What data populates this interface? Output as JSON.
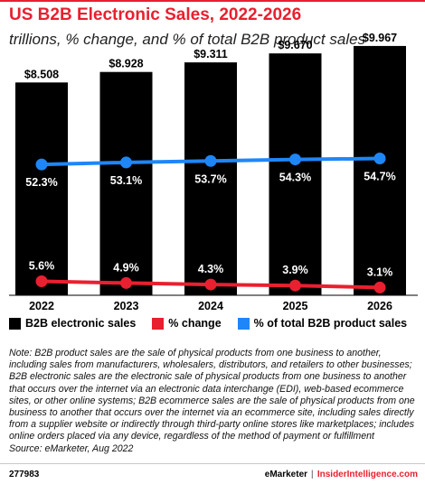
{
  "header": {
    "title": "US B2B Electronic Sales, 2022-2026",
    "subtitle": "trillions, % change, and % of total B2B product sales"
  },
  "chart_data": {
    "type": "bar",
    "categories": [
      "2022",
      "2023",
      "2024",
      "2025",
      "2026"
    ],
    "series": [
      {
        "name": "B2B electronic sales",
        "type": "bar",
        "color": "#000000",
        "values": [
          8.508,
          8.928,
          9.311,
          9.67,
          9.967
        ],
        "labels": [
          "$8.508",
          "$8.928",
          "$9.311",
          "$9.670",
          "$9.967"
        ]
      },
      {
        "name": "% change",
        "type": "line",
        "color": "#e8202f",
        "values": [
          5.6,
          4.9,
          4.3,
          3.9,
          3.1
        ],
        "labels": [
          "5.6%",
          "4.9%",
          "4.3%",
          "3.9%",
          "3.1%"
        ]
      },
      {
        "name": "% of total B2B product sales",
        "type": "line",
        "color": "#1f86f7",
        "values": [
          52.3,
          53.1,
          53.7,
          54.3,
          54.7
        ],
        "labels": [
          "52.3%",
          "53.1%",
          "53.7%",
          "54.3%",
          "54.7%"
        ]
      }
    ],
    "ylim_bars": [
      0,
      10
    ],
    "ylim_lines": [
      0,
      100
    ],
    "grid": false,
    "legend_position": "bottom"
  },
  "note": "Note: B2B product sales are the sale of physical products from one business to another, including sales from manufacturers, wholesalers, distributors, and retailers to other businesses; B2B electronic sales are the electronic sale of physical products from one business to another that occurs over the internet via an electronic data interchange (EDI), web-based ecommerce sites, or other online systems; B2B ecommerce sales are the sale of physical products from one business to another that occurs over the internet via an ecommerce site, including sales directly from a supplier website or indirectly through third-party online stores like marketplaces; includes online orders placed via any device, regardless of the method of payment or fulfillment",
  "source": "Source: eMarketer, Aug 2022",
  "footer": {
    "chart_id": "277983",
    "brand": "eMarketer",
    "separator": "|",
    "site": "InsiderIntelligence.com"
  }
}
